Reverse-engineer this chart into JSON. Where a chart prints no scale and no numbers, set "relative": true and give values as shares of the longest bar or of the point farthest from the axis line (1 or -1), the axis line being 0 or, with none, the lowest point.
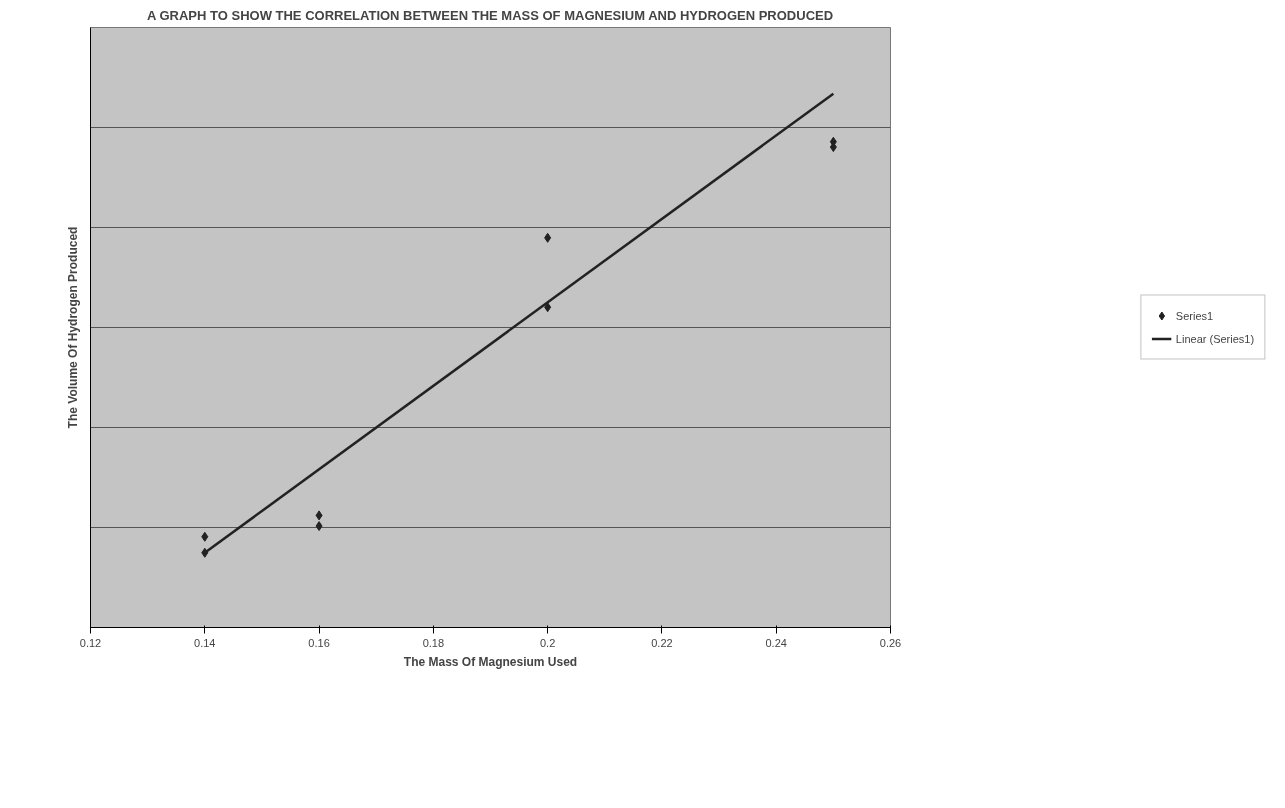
{
  "chart_data": {
    "type": "scatter",
    "title": "A GRAPH TO SHOW THE CORRELATION BETWEEN THE MASS OF MAGNESIUM AND HYDROGEN PRODUCED",
    "xlabel": "The Mass Of Magnesium Used",
    "ylabel": "The Volume Of Hydrogen Produced",
    "relative": true,
    "xlim": [
      0.12,
      0.26
    ],
    "xticks": [
      0.12,
      0.14,
      0.16,
      0.18,
      {
        "value": 0.2,
        "label": "0.2"
      },
      0.22,
      0.24,
      0.26
    ],
    "grid": "y",
    "legend": "right",
    "series": [
      {
        "name": "Series1",
        "marker": "diamond",
        "color": "#222222",
        "x": [
          0.14,
          0.14,
          0.16,
          0.16,
          0.2,
          0.2,
          0.25,
          0.25
        ],
        "values": [
          0.14,
          0.17,
          0.21,
          0.19,
          0.73,
          0.6,
          0.91,
          0.9
        ]
      },
      {
        "name": "Linear (Series1)",
        "type": "line",
        "line_style": "solid",
        "color": "#222222",
        "x": [
          0.14,
          0.25
        ],
        "values": [
          0.14,
          1.0
        ]
      }
    ]
  }
}
